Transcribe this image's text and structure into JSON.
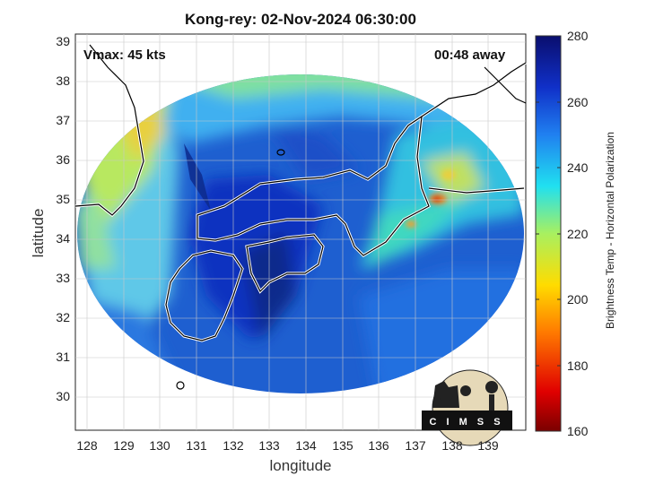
{
  "title": "Kong-rey: 02-Nov-2024 06:30:00",
  "xlabel": "longitude",
  "ylabel": "latitude",
  "colorbar_label": "Brightness Temp - Horizontal Polarization",
  "vmax_text": "Vmax: 45 kts",
  "away_text": "00:48 away",
  "logo_text": "CIMSS",
  "x_ticks": [
    "128",
    "129",
    "130",
    "131",
    "132",
    "133",
    "134",
    "135",
    "136",
    "137",
    "138",
    "139"
  ],
  "y_ticks": [
    "39",
    "38",
    "37",
    "36",
    "35",
    "34",
    "33",
    "32",
    "31",
    "30"
  ],
  "colorbar_ticks": [
    "280",
    "260",
    "240",
    "220",
    "200",
    "180",
    "160"
  ],
  "colors": {
    "disk_base": "#1e5fd0",
    "deep_blue": "#0d2a8c",
    "cyan": "#2fd0e8",
    "yellow": "#d8e84a",
    "orange": "#f08a20",
    "red": "#c81414"
  }
}
